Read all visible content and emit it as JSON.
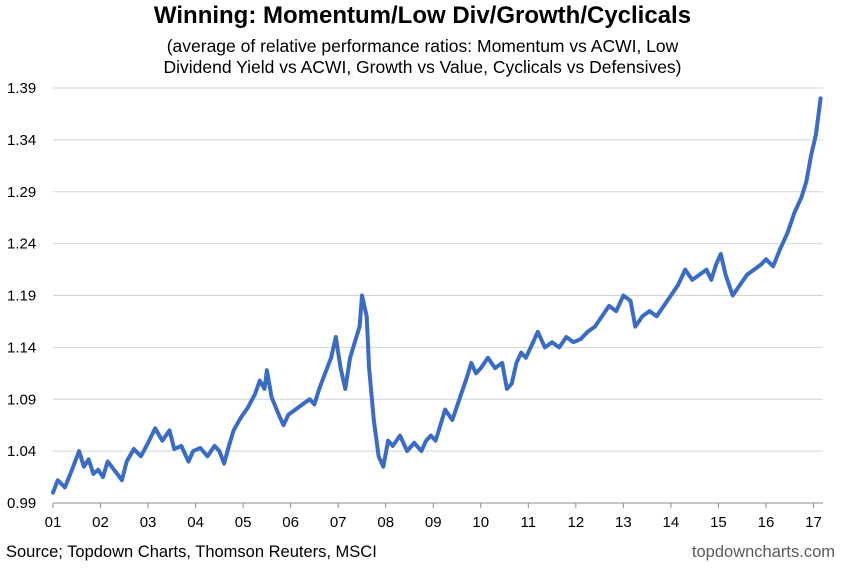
{
  "chart_data": {
    "type": "line",
    "title": "Winning: Momentum/Low Div/Growth/Cyclicals",
    "subtitle_lines": [
      "(average of relative performance ratios: Momentum vs ACWI, Low",
      "Dividend Yield vs ACWI, Growth vs Value, Cyclicals vs Defensives)"
    ],
    "xlabel": "",
    "ylabel": "",
    "x_ticks": [
      "01",
      "02",
      "03",
      "04",
      "05",
      "06",
      "07",
      "08",
      "09",
      "10",
      "11",
      "12",
      "13",
      "14",
      "15",
      "16",
      "17"
    ],
    "y_ticks": [
      "0.99",
      "1.04",
      "1.09",
      "1.14",
      "1.19",
      "1.24",
      "1.29",
      "1.34",
      "1.39"
    ],
    "ylim": [
      0.99,
      1.39
    ],
    "xlim": [
      2001.0,
      2017.2
    ],
    "grid": true,
    "line_color": "#3a6cc6",
    "series": [
      {
        "x": [
          2001.0,
          2001.1,
          2001.25,
          2001.4,
          2001.55,
          2001.65,
          2001.75,
          2001.85,
          2001.95,
          2002.05,
          2002.15,
          2002.25,
          2002.35,
          2002.45,
          2002.55,
          2002.7,
          2002.85,
          2003.0,
          2003.15,
          2003.3,
          2003.45,
          2003.55,
          2003.7,
          2003.85,
          2003.95,
          2004.1,
          2004.25,
          2004.4,
          2004.5,
          2004.6,
          2004.7,
          2004.8,
          2004.95,
          2005.1,
          2005.25,
          2005.35,
          2005.45,
          2005.5,
          2005.6,
          2005.75,
          2005.85,
          2005.95,
          2006.1,
          2006.25,
          2006.4,
          2006.5,
          2006.6,
          2006.75,
          2006.85,
          2006.95,
          2007.05,
          2007.15,
          2007.25,
          2007.35,
          2007.45,
          2007.5,
          2007.6,
          2007.65,
          2007.75,
          2007.85,
          2007.95,
          2008.05,
          2008.15,
          2008.3,
          2008.45,
          2008.6,
          2008.75,
          2008.85,
          2008.95,
          2009.05,
          2009.15,
          2009.25,
          2009.4,
          2009.55,
          2009.7,
          2009.8,
          2009.9,
          2010.0,
          2010.15,
          2010.3,
          2010.45,
          2010.55,
          2010.65,
          2010.75,
          2010.85,
          2010.95,
          2011.05,
          2011.2,
          2011.35,
          2011.5,
          2011.65,
          2011.8,
          2011.95,
          2012.1,
          2012.25,
          2012.4,
          2012.55,
          2012.7,
          2012.85,
          2013.0,
          2013.15,
          2013.25,
          2013.4,
          2013.55,
          2013.7,
          2013.85,
          2014.0,
          2014.15,
          2014.3,
          2014.45,
          2014.6,
          2014.75,
          2014.85,
          2014.95,
          2015.05,
          2015.15,
          2015.3,
          2015.45,
          2015.6,
          2015.75,
          2015.9,
          2016.0,
          2016.15,
          2016.3,
          2016.45,
          2016.6,
          2016.75,
          2016.85,
          2016.95,
          2017.05,
          2017.15
        ],
        "values": [
          1.0,
          1.012,
          1.005,
          1.022,
          1.04,
          1.025,
          1.032,
          1.018,
          1.022,
          1.015,
          1.03,
          1.024,
          1.018,
          1.012,
          1.03,
          1.042,
          1.035,
          1.048,
          1.062,
          1.05,
          1.06,
          1.042,
          1.045,
          1.03,
          1.04,
          1.043,
          1.035,
          1.045,
          1.04,
          1.028,
          1.045,
          1.06,
          1.072,
          1.082,
          1.095,
          1.108,
          1.1,
          1.118,
          1.092,
          1.075,
          1.065,
          1.075,
          1.08,
          1.085,
          1.09,
          1.085,
          1.1,
          1.118,
          1.13,
          1.15,
          1.12,
          1.1,
          1.13,
          1.145,
          1.16,
          1.19,
          1.17,
          1.12,
          1.07,
          1.035,
          1.025,
          1.05,
          1.045,
          1.055,
          1.04,
          1.048,
          1.04,
          1.05,
          1.055,
          1.05,
          1.065,
          1.08,
          1.07,
          1.09,
          1.11,
          1.125,
          1.115,
          1.12,
          1.13,
          1.12,
          1.125,
          1.1,
          1.105,
          1.125,
          1.135,
          1.13,
          1.14,
          1.155,
          1.14,
          1.145,
          1.14,
          1.15,
          1.145,
          1.148,
          1.155,
          1.16,
          1.17,
          1.18,
          1.175,
          1.19,
          1.185,
          1.16,
          1.17,
          1.175,
          1.17,
          1.18,
          1.19,
          1.2,
          1.215,
          1.205,
          1.21,
          1.215,
          1.205,
          1.22,
          1.23,
          1.21,
          1.19,
          1.2,
          1.21,
          1.215,
          1.22,
          1.225,
          1.218,
          1.235,
          1.25,
          1.27,
          1.285,
          1.3,
          1.325,
          1.345,
          1.38
        ]
      }
    ]
  },
  "source_text": "Source; Topdown Charts, Thomson Reuters, MSCI",
  "brand_text": "topdowncharts.com"
}
